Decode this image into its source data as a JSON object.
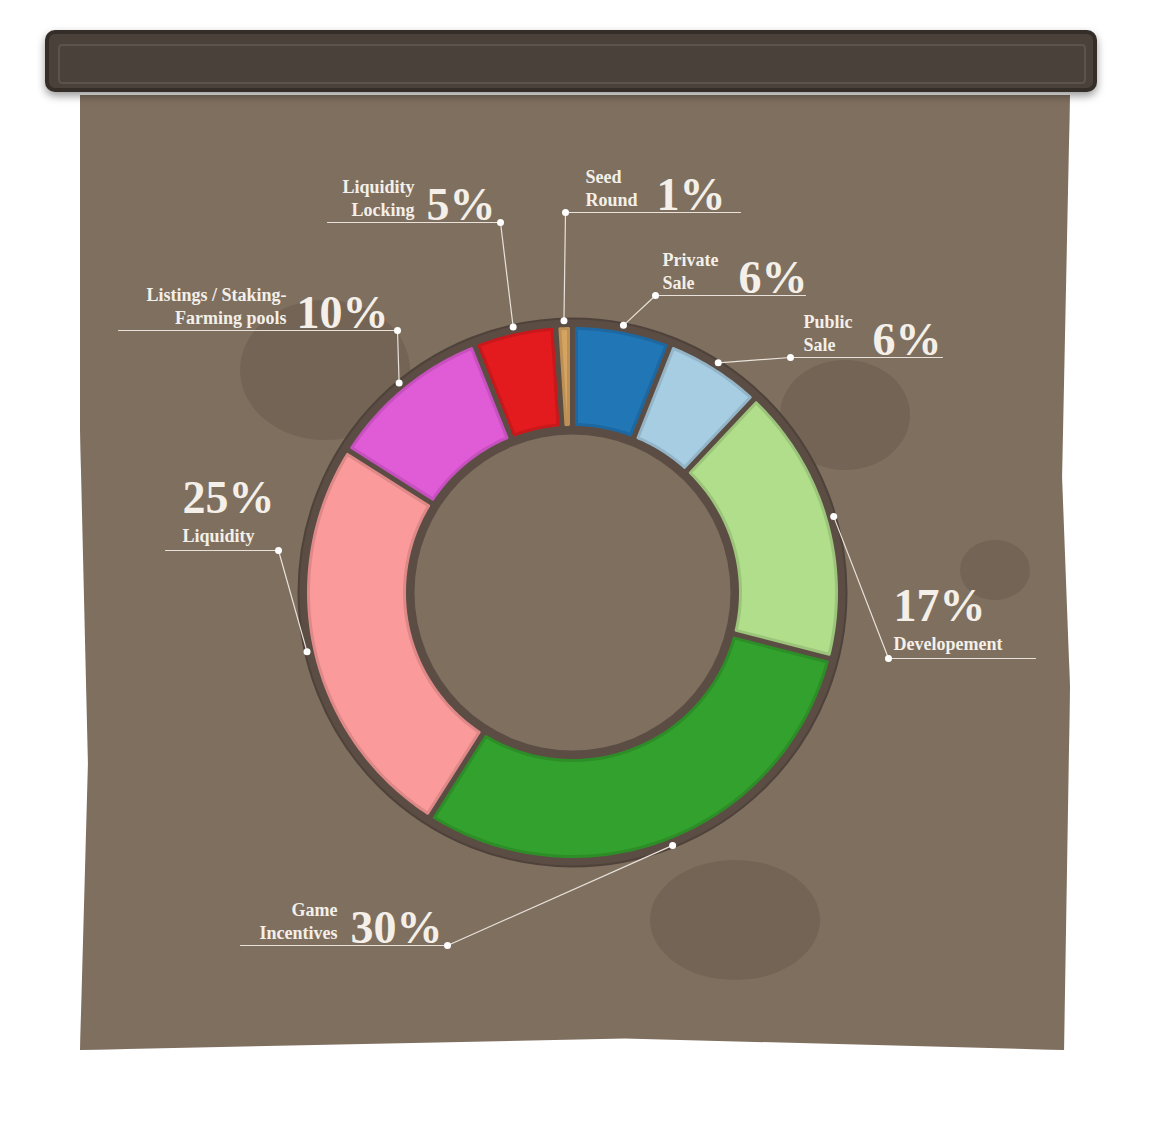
{
  "chart_data": {
    "type": "donut",
    "categories": [
      "Private Sale",
      "Public Sale",
      "Developement",
      "Game Incentives",
      "Liquidity",
      "Listings / Staking-Farming pools",
      "Liquidity Locking",
      "Seed Round"
    ],
    "values": [
      6,
      6,
      17,
      30,
      25,
      10,
      5,
      1
    ],
    "value_labels": [
      "6%",
      "6%",
      "17%",
      "30%",
      "25%",
      "10%",
      "5%",
      "1%"
    ],
    "colors": [
      "#2176b6",
      "#a7cde2",
      "#b1de8b",
      "#33a12d",
      "#fb9a9a",
      "#e05bd6",
      "#e31b1f",
      "#d6a461"
    ],
    "data_labels": true
  }
}
